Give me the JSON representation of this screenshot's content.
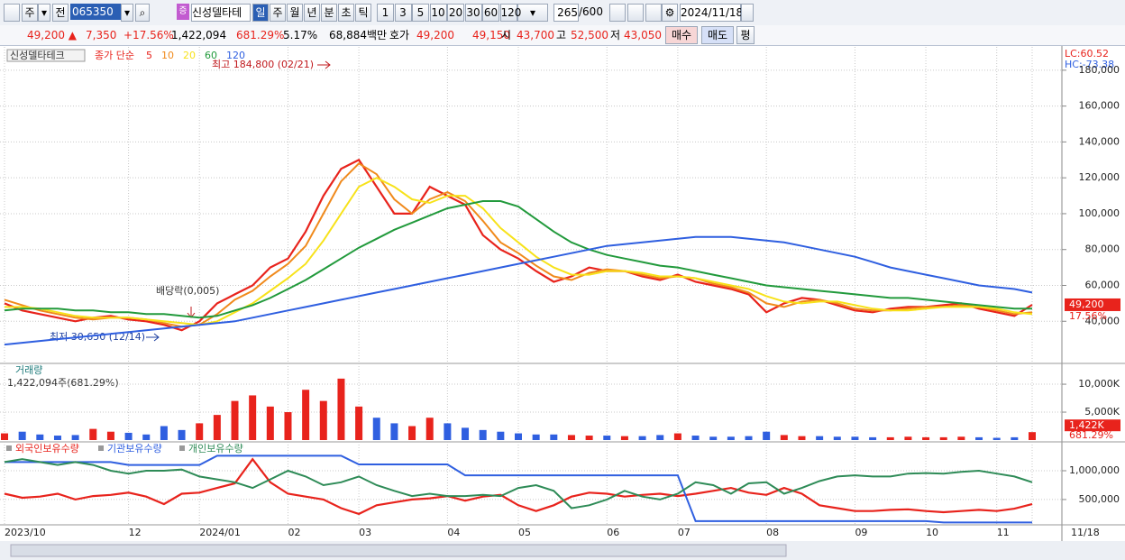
{
  "toolbar": {
    "period_type": "주",
    "compare": "전",
    "code": "065350",
    "name": "신성델타테",
    "intervals": [
      "일",
      "주",
      "월",
      "년",
      "분",
      "초",
      "틱"
    ],
    "minutes": [
      "1",
      "3",
      "5",
      "10",
      "20",
      "30",
      "60",
      "120"
    ],
    "count": "265",
    "total": "/600",
    "date": "2024/11/18"
  },
  "quote": {
    "price": "49,200 ▲",
    "change": "7,350",
    "change_pct": "+17.56%",
    "volume": "1,422,094",
    "volume_ratio": "681.29%",
    "turnover": "5.17%",
    "amount": "68,884백만",
    "bid_label": "호가",
    "ask": "49,200",
    "bid": "49,150",
    "open_label": "시",
    "open": "43,700",
    "high_label": "고",
    "high": "52,500",
    "low_label": "저",
    "low": "43,050",
    "buy": "매수",
    "sell": "매도",
    "eval": "평"
  },
  "chart_data": [
    {
      "type": "line",
      "title": "신성델타테크",
      "subtitle": "종가 단순",
      "categories": [
        "2023/10",
        null,
        null,
        null,
        null,
        null,
        null,
        "12",
        null,
        null,
        null,
        "2024/01",
        null,
        null,
        null,
        null,
        "02",
        null,
        null,
        null,
        "03",
        null,
        null,
        null,
        null,
        "04",
        null,
        null,
        null,
        "05",
        null,
        null,
        null,
        null,
        "06",
        null,
        null,
        null,
        "07",
        null,
        null,
        null,
        null,
        "08",
        null,
        null,
        null,
        null,
        "09",
        null,
        null,
        null,
        "10",
        null,
        null,
        null,
        "11",
        null,
        "11/18"
      ],
      "series": [
        {
          "name": "5",
          "color": "#e8231c",
          "values": [
            50000,
            46000,
            44000,
            42000,
            40000,
            42000,
            43000,
            41000,
            40000,
            38000,
            35000,
            40000,
            50000,
            55000,
            60000,
            70000,
            75000,
            90000,
            110000,
            125000,
            130000,
            115000,
            100000,
            100000,
            115000,
            110000,
            105000,
            88000,
            80000,
            75000,
            68000,
            62000,
            65000,
            70000,
            68000,
            68000,
            65000,
            63000,
            66000,
            62000,
            60000,
            58000,
            55000,
            45000,
            50000,
            53000,
            52000,
            49000,
            46000,
            45000,
            47000,
            48000,
            48000,
            49000,
            50000,
            47000,
            45000,
            43000,
            49200
          ]
        },
        {
          "name": "10",
          "color": "#f08a1c",
          "values": [
            52000,
            49000,
            46000,
            44000,
            42000,
            41000,
            42000,
            42000,
            41000,
            39000,
            37000,
            38000,
            44000,
            52000,
            57000,
            65000,
            72000,
            82000,
            100000,
            118000,
            128000,
            122000,
            108000,
            100000,
            108000,
            112000,
            107000,
            96000,
            84000,
            78000,
            71000,
            65000,
            63000,
            67000,
            69000,
            68000,
            66000,
            64000,
            65000,
            64000,
            61000,
            59000,
            56000,
            50000,
            48000,
            51000,
            52000,
            50000,
            47000,
            46000,
            46000,
            47000,
            48000,
            48000,
            49000,
            48000,
            46000,
            44000,
            45000
          ]
        },
        {
          "name": "20",
          "color": "#f7e21a",
          "values": [
            48000,
            48000,
            47000,
            45000,
            43000,
            42000,
            42000,
            42000,
            41000,
            40000,
            39000,
            38000,
            40000,
            45000,
            50000,
            57000,
            64000,
            72000,
            85000,
            100000,
            115000,
            120000,
            115000,
            108000,
            106000,
            110000,
            110000,
            103000,
            92000,
            84000,
            76000,
            70000,
            66000,
            66000,
            68000,
            68000,
            67000,
            65000,
            65000,
            64000,
            62000,
            60000,
            58000,
            54000,
            51000,
            50000,
            51000,
            51000,
            49000,
            47000,
            46000,
            46000,
            47000,
            48000,
            48000,
            48000,
            47000,
            45000,
            44000
          ]
        },
        {
          "name": "60",
          "color": "#229a3c",
          "values": [
            46000,
            47000,
            47000,
            47000,
            46000,
            46000,
            45000,
            45000,
            44000,
            44000,
            43000,
            42000,
            43000,
            46000,
            49000,
            53000,
            58000,
            63000,
            69000,
            75000,
            81000,
            86000,
            91000,
            95000,
            99000,
            103000,
            105000,
            107000,
            107000,
            104000,
            97000,
            90000,
            84000,
            80000,
            77000,
            75000,
            73000,
            71000,
            70000,
            68000,
            66000,
            64000,
            62000,
            60000,
            59000,
            58000,
            57000,
            56000,
            55000,
            54000,
            53000,
            53000,
            52000,
            51000,
            50000,
            49000,
            48000,
            47000,
            47000
          ]
        },
        {
          "name": "120",
          "color": "#2f5fe0",
          "values": [
            27000,
            28000,
            29000,
            30000,
            31000,
            32000,
            33000,
            34000,
            35000,
            36000,
            37000,
            38000,
            39000,
            40000,
            42000,
            44000,
            46000,
            48000,
            50000,
            52000,
            54000,
            56000,
            58000,
            60000,
            62000,
            64000,
            66000,
            68000,
            70000,
            72000,
            74000,
            76000,
            78000,
            80000,
            82000,
            83000,
            84000,
            85000,
            86000,
            87000,
            87000,
            87000,
            86000,
            85000,
            84000,
            82000,
            80000,
            78000,
            76000,
            73000,
            70000,
            68000,
            66000,
            64000,
            62000,
            60000,
            59000,
            58000,
            56000
          ]
        }
      ],
      "ylim": [
        17000,
        193000
      ],
      "yticks": [
        {
          "value": 40000,
          "label": "40,000"
        },
        {
          "value": 60000,
          "label": "60,000"
        },
        {
          "value": 80000,
          "label": "80,000"
        },
        {
          "value": 100000,
          "label": "100,000"
        },
        {
          "value": 120000,
          "label": "120,000"
        },
        {
          "value": 140000,
          "label": "140,000"
        },
        {
          "value": 160000,
          "label": "160,000"
        },
        {
          "value": 180000,
          "label": "180,000"
        }
      ],
      "grid": true,
      "annotations": [
        "최고 184,800 (02/21)",
        "최저 30,650 (12/14)",
        "배당락(0,005)"
      ],
      "lc": "LC:60.52",
      "hc": "HC:-73.38",
      "last_label": "49,200",
      "last_change": "17.56%"
    },
    {
      "type": "bar",
      "title": "거래량",
      "subtitle": "1,422,094주(681.29%)",
      "up_color": "#e8231c",
      "down_color": "#2f5fe0",
      "values": [
        1200,
        1500,
        1000,
        800,
        900,
        2000,
        1500,
        1300,
        1000,
        2500,
        1800,
        3000,
        4500,
        7000,
        8000,
        6000,
        5000,
        9000,
        7000,
        11000,
        6000,
        4000,
        3000,
        2500,
        4000,
        3000,
        2200,
        1800,
        1500,
        1200,
        1000,
        1000,
        900,
        800,
        800,
        700,
        700,
        900,
        1200,
        800,
        600,
        600,
        700,
        1500,
        900,
        700,
        700,
        600,
        600,
        500,
        500,
        600,
        500,
        500,
        600,
        500,
        400,
        500,
        1422
      ],
      "ylim": [
        0,
        13400
      ],
      "yticks": [
        {
          "value": 5000,
          "label": "5,000K"
        },
        {
          "value": 10000,
          "label": "10,000K"
        }
      ],
      "grid": true,
      "last_label": "1,422K",
      "last_pct": "681.29%"
    },
    {
      "type": "line",
      "series": [
        {
          "name": "외국인보유수량",
          "color": "#e8231c",
          "values": [
            600000,
            530000,
            550000,
            600000,
            500000,
            560000,
            580000,
            620000,
            550000,
            420000,
            600000,
            620000,
            700000,
            780000,
            1200000,
            800000,
            600000,
            550000,
            500000,
            350000,
            250000,
            400000,
            450000,
            500000,
            520000,
            560000,
            480000,
            550000,
            580000,
            400000,
            300000,
            400000,
            550000,
            620000,
            600000,
            550000,
            580000,
            600000,
            560000,
            600000,
            650000,
            700000,
            620000,
            580000,
            700000,
            600000,
            400000,
            350000,
            300000,
            300000,
            320000,
            330000,
            300000,
            280000,
            300000,
            320000,
            300000,
            340000,
            420000
          ]
        },
        {
          "name": "기관보유수량",
          "color": "#2f5fe0",
          "values": [
            1150000,
            1150000,
            1150000,
            1150000,
            1150000,
            1150000,
            1150000,
            1100000,
            1100000,
            1100000,
            1100000,
            1100000,
            1260000,
            1260000,
            1260000,
            1260000,
            1260000,
            1260000,
            1260000,
            1260000,
            1110000,
            1110000,
            1110000,
            1110000,
            1110000,
            1110000,
            920000,
            920000,
            920000,
            920000,
            920000,
            920000,
            920000,
            920000,
            920000,
            920000,
            920000,
            920000,
            920000,
            125000,
            125000,
            125000,
            125000,
            125000,
            125000,
            125000,
            125000,
            125000,
            125000,
            125000,
            125000,
            125000,
            125000,
            100000,
            100000,
            100000,
            100000,
            100000,
            100000
          ]
        },
        {
          "name": "개인보유수량",
          "color": "#2e8b57",
          "values": [
            1150000,
            1200000,
            1150000,
            1100000,
            1150000,
            1100000,
            1000000,
            950000,
            1000000,
            1000000,
            1020000,
            900000,
            850000,
            800000,
            700000,
            850000,
            1000000,
            900000,
            750000,
            800000,
            900000,
            750000,
            650000,
            560000,
            600000,
            560000,
            560000,
            580000,
            560000,
            700000,
            750000,
            650000,
            350000,
            400000,
            500000,
            650000,
            550000,
            500000,
            600000,
            800000,
            750000,
            600000,
            780000,
            800000,
            600000,
            700000,
            820000,
            900000,
            920000,
            900000,
            900000,
            950000,
            960000,
            950000,
            980000,
            1000000,
            950000,
            900000,
            800000
          ]
        }
      ],
      "ylim": [
        60000,
        1470000
      ],
      "yticks": [
        {
          "value": 500000,
          "label": "500,000"
        },
        {
          "value": 1000000,
          "label": "1,000,000"
        }
      ],
      "grid": true
    }
  ]
}
